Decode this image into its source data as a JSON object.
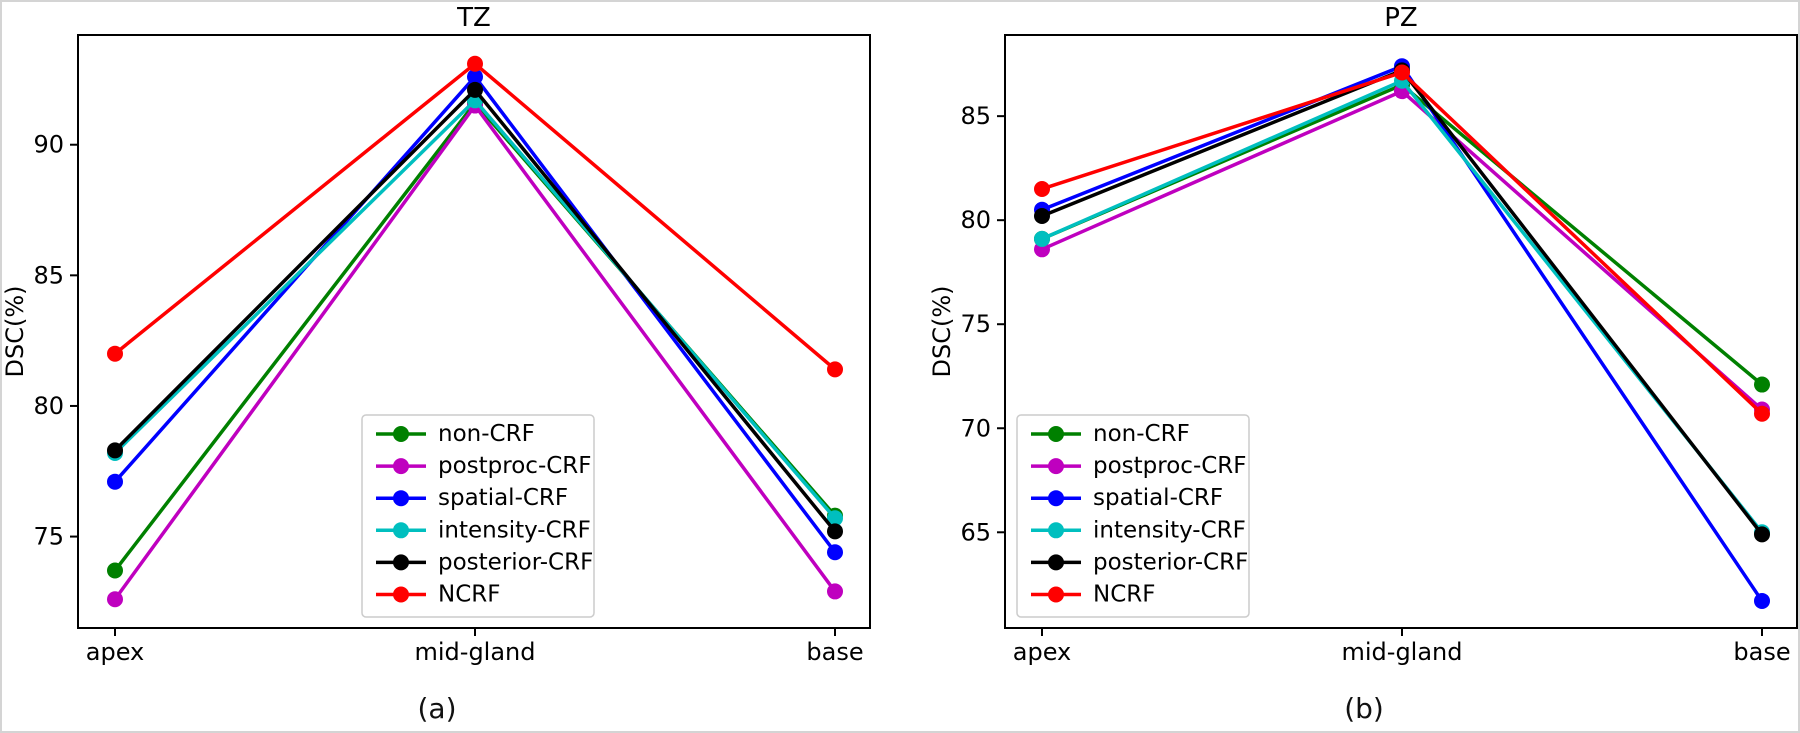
{
  "figure": {
    "caption_a": "(a)",
    "caption_b": "(b)"
  },
  "style": {
    "spine_color": "#000000",
    "legend_border_color": "#cccccc",
    "legend_background": "rgba(255,255,255,0.85)"
  },
  "chart_data": [
    {
      "type": "line",
      "title": "TZ",
      "xlabel": "",
      "ylabel": "DSC(%)",
      "categories": [
        "apex",
        "mid-gland",
        "base"
      ],
      "yticks": [
        75,
        80,
        85,
        90
      ],
      "ylim": [
        71.5,
        94.2
      ],
      "grid": false,
      "legend_loc": "lower center",
      "series": [
        {
          "name": "non-CRF",
          "color": "#008000",
          "values": [
            73.7,
            91.6,
            75.8
          ]
        },
        {
          "name": "postproc-CRF",
          "color": "#bf00bf",
          "values": [
            72.6,
            91.5,
            72.9
          ]
        },
        {
          "name": "spatial-CRF",
          "color": "#0000ff",
          "values": [
            77.1,
            92.6,
            74.4
          ]
        },
        {
          "name": "intensity-CRF",
          "color": "#00bfbf",
          "values": [
            78.2,
            91.7,
            75.7
          ]
        },
        {
          "name": "posterior-CRF",
          "color": "#000000",
          "values": [
            78.3,
            92.1,
            75.2
          ]
        },
        {
          "name": "NCRF",
          "color": "#ff0000",
          "values": [
            82.0,
            93.1,
            81.4
          ]
        }
      ]
    },
    {
      "type": "line",
      "title": "PZ",
      "xlabel": "",
      "ylabel": "DSC(%)",
      "categories": [
        "apex",
        "mid-gland",
        "base"
      ],
      "yticks": [
        65,
        70,
        75,
        80,
        85
      ],
      "ylim": [
        60.4,
        88.9
      ],
      "grid": false,
      "legend_loc": "lower left",
      "series": [
        {
          "name": "non-CRF",
          "color": "#008000",
          "values": [
            79.1,
            86.5,
            72.1
          ]
        },
        {
          "name": "postproc-CRF",
          "color": "#bf00bf",
          "values": [
            78.6,
            86.2,
            70.9
          ]
        },
        {
          "name": "spatial-CRF",
          "color": "#0000ff",
          "values": [
            80.5,
            87.4,
            61.7
          ]
        },
        {
          "name": "intensity-CRF",
          "color": "#00bfbf",
          "values": [
            79.1,
            86.7,
            65.0
          ]
        },
        {
          "name": "posterior-CRF",
          "color": "#000000",
          "values": [
            80.2,
            87.2,
            64.9
          ]
        },
        {
          "name": "NCRF",
          "color": "#ff0000",
          "values": [
            81.5,
            87.1,
            70.7
          ]
        }
      ]
    }
  ]
}
